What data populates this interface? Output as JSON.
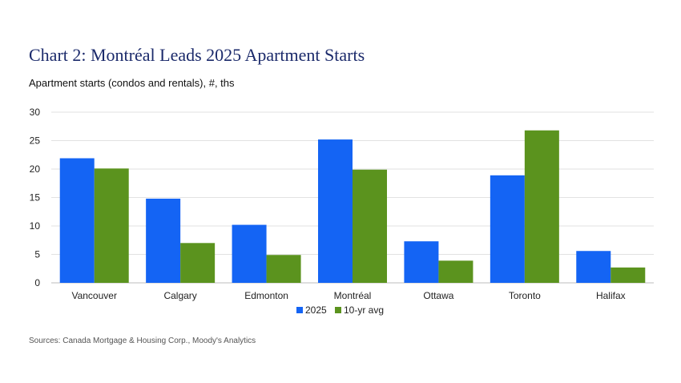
{
  "chart_data": {
    "type": "bar",
    "title": "Chart 2: Montréal Leads 2025 Apartment Starts",
    "subtitle": "Apartment starts (condos and rentals), #, ths",
    "categories": [
      "Vancouver",
      "Calgary",
      "Edmonton",
      "Montréal",
      "Ottawa",
      "Toronto",
      "Halifax"
    ],
    "series": [
      {
        "name": "2025",
        "color": "#1464f4",
        "values": [
          21.9,
          14.8,
          10.2,
          25.2,
          7.3,
          18.9,
          5.6
        ]
      },
      {
        "name": "10-yr avg",
        "color": "#5b931e",
        "values": [
          20.1,
          7.0,
          4.9,
          19.9,
          3.9,
          26.8,
          2.7
        ]
      }
    ],
    "ylim": [
      0,
      30
    ],
    "yticks": [
      "0",
      "5",
      "10",
      "15",
      "20",
      "25",
      "30"
    ],
    "grid": true,
    "legend": "bottom",
    "source": "Sources: Canada Mortgage & Housing Corp., Moody's Analytics"
  }
}
